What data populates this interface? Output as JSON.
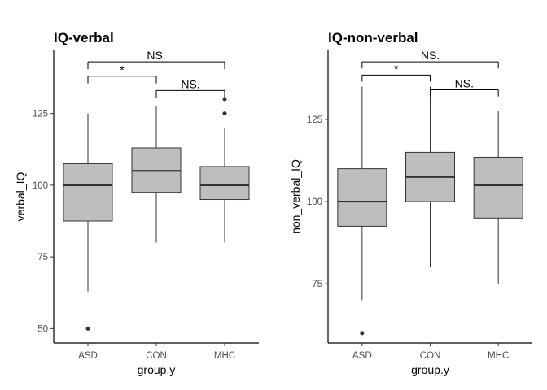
{
  "chart_data": [
    {
      "type": "box",
      "title": "IQ-verbal",
      "xlabel": "group.y",
      "ylabel": "verbal_IQ",
      "categories": [
        "ASD",
        "CON",
        "MHC"
      ],
      "ylim": [
        45,
        147
      ],
      "yticks": [
        50,
        75,
        100,
        125
      ],
      "box_fill": "#bebebe",
      "boxes": [
        {
          "category": "ASD",
          "whisker_low": 63,
          "q1": 87.5,
          "median": 100,
          "q3": 107.5,
          "whisker_high": 125,
          "outliers": [
            50
          ]
        },
        {
          "category": "CON",
          "whisker_low": 80,
          "q1": 97.5,
          "median": 105,
          "q3": 113,
          "whisker_high": 127.5,
          "outliers": []
        },
        {
          "category": "MHC",
          "whisker_low": 80,
          "q1": 95,
          "median": 100,
          "q3": 106.5,
          "whisker_high": 120,
          "outliers": [
            125,
            130
          ]
        }
      ],
      "significance": [
        {
          "from": "ASD",
          "to": "MHC",
          "label": "NS.",
          "y": 143,
          "tick_y": 140.5
        },
        {
          "from": "ASD",
          "to": "CON",
          "label": "*",
          "y": 138,
          "tick_y": 135.5
        },
        {
          "from": "CON",
          "to": "MHC",
          "label": "NS.",
          "y": 133,
          "tick_y": 130.5
        }
      ]
    },
    {
      "type": "box",
      "title": "IQ-non-verbal",
      "xlabel": "group.y",
      "ylabel": "non_verbal_IQ",
      "categories": [
        "ASD",
        "CON",
        "MHC"
      ],
      "ylim": [
        57,
        146
      ],
      "yticks": [
        75,
        100,
        125
      ],
      "box_fill": "#bebebe",
      "boxes": [
        {
          "category": "ASD",
          "whisker_low": 70,
          "q1": 92.5,
          "median": 100,
          "q3": 110,
          "whisker_high": 135,
          "outliers": [
            60
          ]
        },
        {
          "category": "CON",
          "whisker_low": 80,
          "q1": 100,
          "median": 107.5,
          "q3": 115,
          "whisker_high": 135,
          "outliers": []
        },
        {
          "category": "MHC",
          "whisker_low": 75,
          "q1": 95,
          "median": 105,
          "q3": 113.5,
          "whisker_high": 127.5,
          "outliers": []
        }
      ],
      "significance": [
        {
          "from": "ASD",
          "to": "MHC",
          "label": "NS.",
          "y": 142.5,
          "tick_y": 140.5
        },
        {
          "from": "ASD",
          "to": "CON",
          "label": "*",
          "y": 138.5,
          "tick_y": 136.5
        },
        {
          "from": "CON",
          "to": "MHC",
          "label": "NS.",
          "y": 134,
          "tick_y": 132
        }
      ]
    }
  ]
}
